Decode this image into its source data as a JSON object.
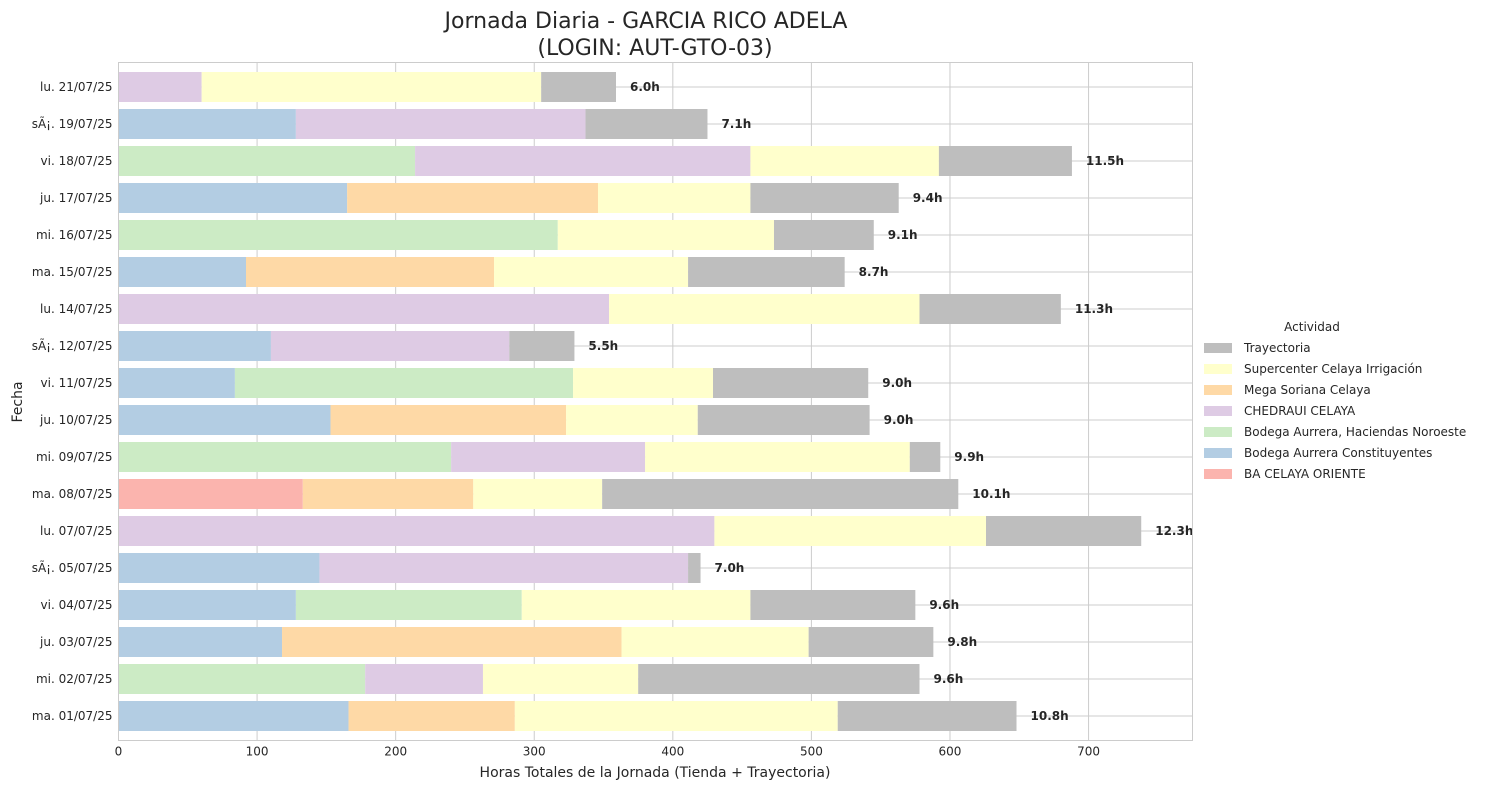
{
  "chart_data": {
    "type": "bar",
    "orientation": "horizontal",
    "stacked": true,
    "title": "Jornada Diaria - GARCIA RICO ADELA",
    "subtitle": "(LOGIN: AUT-GTO-03)",
    "xlabel": "Horas Totales de la Jornada (Tienda + Trayectoria)",
    "ylabel": "Fecha",
    "xlim": [
      0,
      775
    ],
    "xticks": [
      0,
      100,
      200,
      300,
      400,
      500,
      600,
      700
    ],
    "grid": true,
    "legend_title": "Actividad",
    "legend_position": "right",
    "legend_order": [
      "Trayectoria",
      "Supercenter Celaya Irrigación",
      "Mega Soriana Celaya",
      "CHEDRAUI CELAYA",
      "Bodega Aurrera, Haciendas Noroeste",
      "Bodega Aurrera Constituyentes",
      "BA CELAYA ORIENTE"
    ],
    "colors": {
      "Trayectoria": "#bebebe",
      "Supercenter Celaya Irrigación": "#ffffcc",
      "Mega Soriana Celaya": "#fed9a6",
      "CHEDRAUI CELAYA": "#decbe4",
      "Bodega Aurrera, Haciendas Noroeste": "#ccebc5",
      "Bodega Aurrera Constituyentes": "#b3cde3",
      "BA CELAYA ORIENTE": "#fbb4ae"
    },
    "rows": [
      {
        "date": "lu. 21/07/25",
        "total_label": "6.0h",
        "segments": [
          {
            "series": "CHEDRAUI CELAYA",
            "value": 60
          },
          {
            "series": "Supercenter Celaya Irrigación",
            "value": 245
          },
          {
            "series": "Trayectoria",
            "value": 54
          }
        ]
      },
      {
        "date": "sÃ¡. 19/07/25",
        "total_label": "7.1h",
        "segments": [
          {
            "series": "Bodega Aurrera Constituyentes",
            "value": 128
          },
          {
            "series": "CHEDRAUI CELAYA",
            "value": 209
          },
          {
            "series": "Trayectoria",
            "value": 88
          }
        ]
      },
      {
        "date": "vi. 18/07/25",
        "total_label": "11.5h",
        "segments": [
          {
            "series": "Bodega Aurrera, Haciendas Noroeste",
            "value": 214
          },
          {
            "series": "CHEDRAUI CELAYA",
            "value": 242
          },
          {
            "series": "Supercenter Celaya Irrigación",
            "value": 136
          },
          {
            "series": "Trayectoria",
            "value": 96
          }
        ]
      },
      {
        "date": "ju. 17/07/25",
        "total_label": "9.4h",
        "segments": [
          {
            "series": "Bodega Aurrera Constituyentes",
            "value": 165
          },
          {
            "series": "Mega Soriana Celaya",
            "value": 181
          },
          {
            "series": "Supercenter Celaya Irrigación",
            "value": 110
          },
          {
            "series": "Trayectoria",
            "value": 107
          }
        ]
      },
      {
        "date": "mi. 16/07/25",
        "total_label": "9.1h",
        "segments": [
          {
            "series": "Bodega Aurrera, Haciendas Noroeste",
            "value": 317
          },
          {
            "series": "Supercenter Celaya Irrigación",
            "value": 156
          },
          {
            "series": "Trayectoria",
            "value": 72
          }
        ]
      },
      {
        "date": "ma. 15/07/25",
        "total_label": "8.7h",
        "segments": [
          {
            "series": "Bodega Aurrera Constituyentes",
            "value": 92
          },
          {
            "series": "Mega Soriana Celaya",
            "value": 179
          },
          {
            "series": "Supercenter Celaya Irrigación",
            "value": 140
          },
          {
            "series": "Trayectoria",
            "value": 113
          }
        ]
      },
      {
        "date": "lu. 14/07/25",
        "total_label": "11.3h",
        "segments": [
          {
            "series": "CHEDRAUI CELAYA",
            "value": 354
          },
          {
            "series": "Supercenter Celaya Irrigación",
            "value": 224
          },
          {
            "series": "Trayectoria",
            "value": 102
          }
        ]
      },
      {
        "date": "sÃ¡. 12/07/25",
        "total_label": "5.5h",
        "segments": [
          {
            "series": "Bodega Aurrera Constituyentes",
            "value": 110
          },
          {
            "series": "CHEDRAUI CELAYA",
            "value": 172
          },
          {
            "series": "Trayectoria",
            "value": 47
          }
        ]
      },
      {
        "date": "vi. 11/07/25",
        "total_label": "9.0h",
        "segments": [
          {
            "series": "Bodega Aurrera Constituyentes",
            "value": 84
          },
          {
            "series": "Bodega Aurrera, Haciendas Noroeste",
            "value": 244
          },
          {
            "series": "Supercenter Celaya Irrigación",
            "value": 101
          },
          {
            "series": "Trayectoria",
            "value": 112
          }
        ]
      },
      {
        "date": "ju. 10/07/25",
        "total_label": "9.0h",
        "segments": [
          {
            "series": "Bodega Aurrera Constituyentes",
            "value": 153
          },
          {
            "series": "Mega Soriana Celaya",
            "value": 170
          },
          {
            "series": "Supercenter Celaya Irrigación",
            "value": 95
          },
          {
            "series": "Trayectoria",
            "value": 124
          }
        ]
      },
      {
        "date": "mi. 09/07/25",
        "total_label": "9.9h",
        "segments": [
          {
            "series": "Bodega Aurrera, Haciendas Noroeste",
            "value": 240
          },
          {
            "series": "CHEDRAUI CELAYA",
            "value": 140
          },
          {
            "series": "Supercenter Celaya Irrigación",
            "value": 191
          },
          {
            "series": "Trayectoria",
            "value": 22
          }
        ]
      },
      {
        "date": "ma. 08/07/25",
        "total_label": "10.1h",
        "segments": [
          {
            "series": "BA CELAYA ORIENTE",
            "value": 133
          },
          {
            "series": "Mega Soriana Celaya",
            "value": 123
          },
          {
            "series": "Supercenter Celaya Irrigación",
            "value": 93
          },
          {
            "series": "Trayectoria",
            "value": 257
          }
        ]
      },
      {
        "date": "lu. 07/07/25",
        "total_label": "12.3h",
        "segments": [
          {
            "series": "CHEDRAUI CELAYA",
            "value": 430
          },
          {
            "series": "Supercenter Celaya Irrigación",
            "value": 196
          },
          {
            "series": "Trayectoria",
            "value": 112
          }
        ]
      },
      {
        "date": "sÃ¡. 05/07/25",
        "total_label": "7.0h",
        "segments": [
          {
            "series": "Bodega Aurrera Constituyentes",
            "value": 145
          },
          {
            "series": "CHEDRAUI CELAYA",
            "value": 266
          },
          {
            "series": "Trayectoria",
            "value": 9
          }
        ]
      },
      {
        "date": "vi. 04/07/25",
        "total_label": "9.6h",
        "segments": [
          {
            "series": "Bodega Aurrera Constituyentes",
            "value": 128
          },
          {
            "series": "Bodega Aurrera, Haciendas Noroeste",
            "value": 163
          },
          {
            "series": "Supercenter Celaya Irrigación",
            "value": 165
          },
          {
            "series": "Trayectoria",
            "value": 119
          }
        ]
      },
      {
        "date": "ju. 03/07/25",
        "total_label": "9.8h",
        "segments": [
          {
            "series": "Bodega Aurrera Constituyentes",
            "value": 118
          },
          {
            "series": "Mega Soriana Celaya",
            "value": 245
          },
          {
            "series": "Supercenter Celaya Irrigación",
            "value": 135
          },
          {
            "series": "Trayectoria",
            "value": 90
          }
        ]
      },
      {
        "date": "mi. 02/07/25",
        "total_label": "9.6h",
        "segments": [
          {
            "series": "Bodega Aurrera, Haciendas Noroeste",
            "value": 178
          },
          {
            "series": "CHEDRAUI CELAYA",
            "value": 85
          },
          {
            "series": "Supercenter Celaya Irrigación",
            "value": 112
          },
          {
            "series": "Trayectoria",
            "value": 203
          }
        ]
      },
      {
        "date": "ma. 01/07/25",
        "total_label": "10.8h",
        "segments": [
          {
            "series": "Bodega Aurrera Constituyentes",
            "value": 166
          },
          {
            "series": "Mega Soriana Celaya",
            "value": 120
          },
          {
            "series": "Supercenter Celaya Irrigación",
            "value": 233
          },
          {
            "series": "Trayectoria",
            "value": 129
          }
        ]
      }
    ]
  }
}
